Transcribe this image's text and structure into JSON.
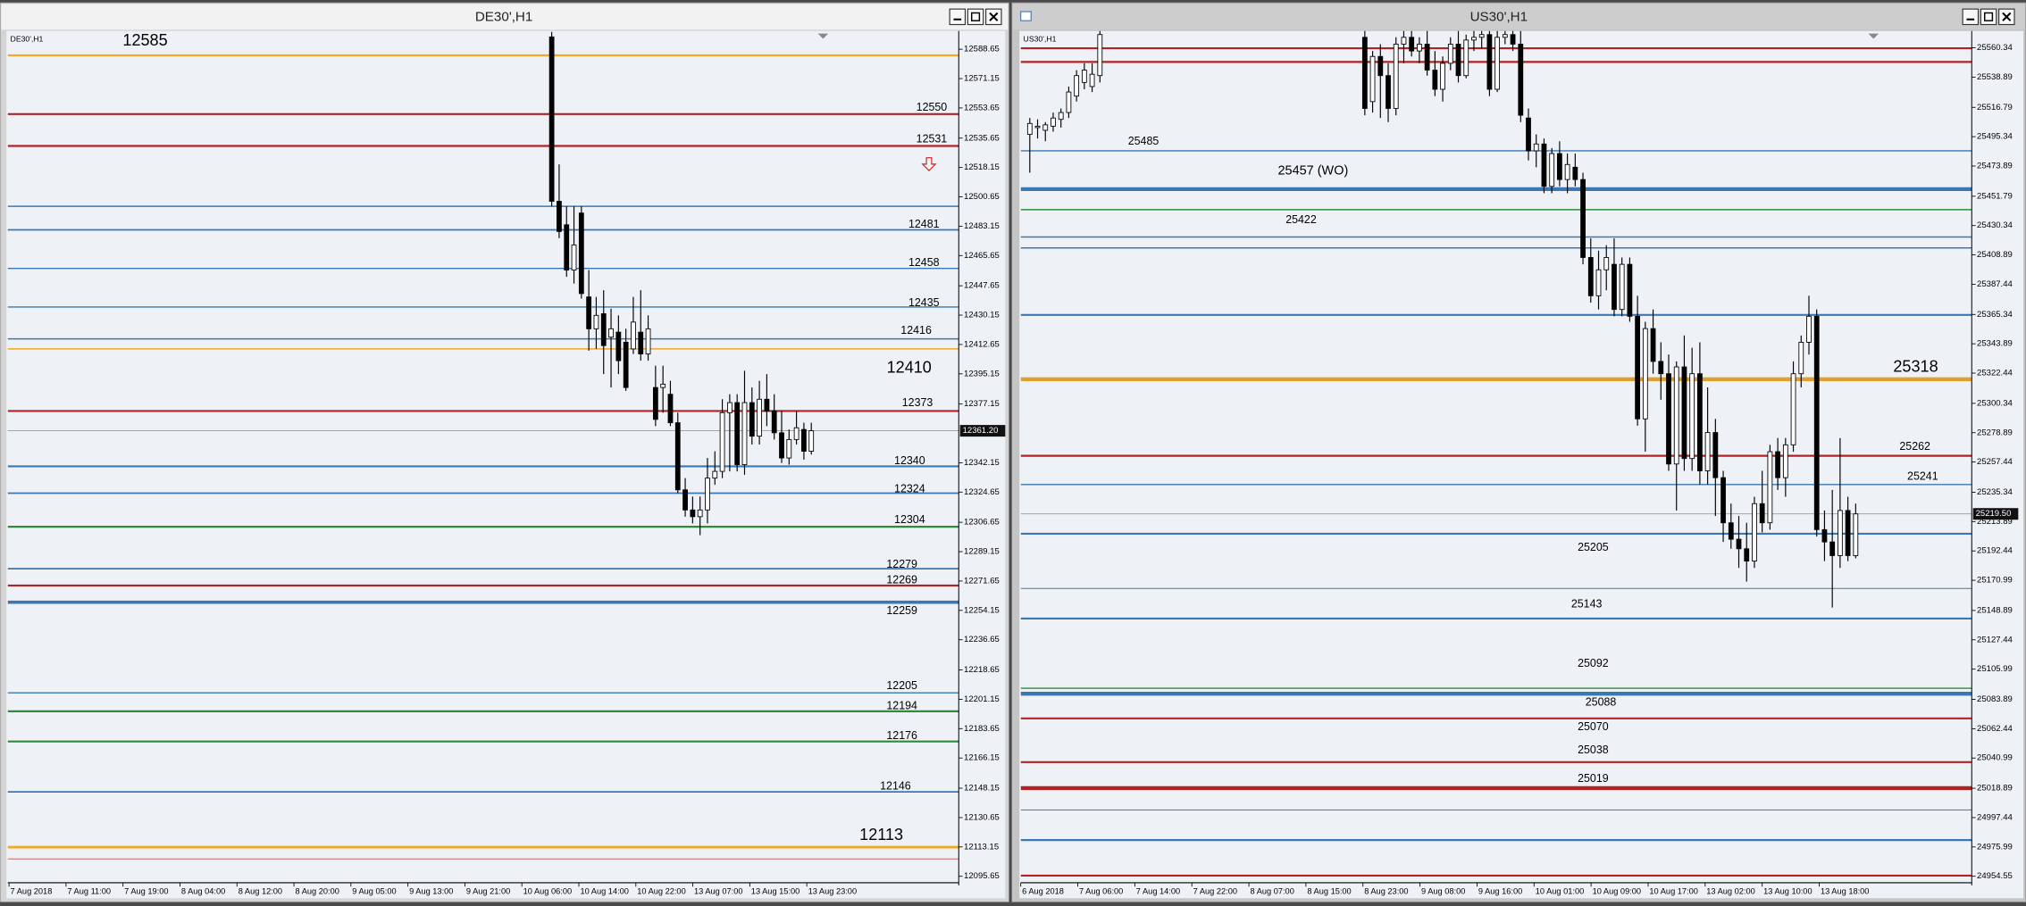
{
  "chart_data": [
    {
      "type": "candlestick",
      "title": "DE30',H1",
      "up_color": "#ffffff",
      "down_color": "#000000",
      "grid": false,
      "ylim": [
        12091.8,
        12599.5
      ],
      "yticks": [
        12588.65,
        12571.15,
        12553.65,
        12535.65,
        12518.15,
        12500.65,
        12483.15,
        12465.65,
        12447.65,
        12430.15,
        12412.65,
        12395.15,
        12377.15,
        12342.15,
        12324.65,
        12306.65,
        12289.15,
        12271.65,
        12254.15,
        12236.65,
        12218.65,
        12201.15,
        12183.65,
        12166.15,
        12148.15,
        12130.65,
        12113.15,
        12095.65
      ],
      "x_labels": [
        "7 Aug 2018",
        "7 Aug 11:00",
        "7 Aug 19:00",
        "8 Aug 04:00",
        "8 Aug 12:00",
        "8 Aug 20:00",
        "9 Aug 05:00",
        "9 Aug 13:00",
        "9 Aug 21:00",
        "10 Aug 06:00",
        "10 Aug 14:00",
        "10 Aug 22:00",
        "13 Aug 07:00",
        "13 Aug 15:00",
        "13 Aug 23:00"
      ],
      "ohlc": [
        [
          12596,
          12599,
          12495,
          12498
        ],
        [
          12498,
          12520,
          12476,
          12480
        ],
        [
          12484,
          12495,
          12453,
          12457
        ],
        [
          12457,
          12495,
          12449,
          12472
        ],
        [
          12491,
          12495,
          12440,
          12443
        ],
        [
          12441,
          12457,
          12409,
          12422
        ],
        [
          12422,
          12441,
          12410,
          12430
        ],
        [
          12431,
          12445,
          12395,
          12412
        ],
        [
          12417,
          12434,
          12387,
          12422
        ],
        [
          12420,
          12430,
          12395,
          12403
        ],
        [
          12414,
          12422,
          12385,
          12387
        ],
        [
          12410,
          12441,
          12407,
          12426
        ],
        [
          12420,
          12445,
          12403,
          12407
        ],
        [
          12407,
          12430,
          12403,
          12422
        ],
        [
          12387,
          12400,
          12364,
          12368
        ],
        [
          12387,
          12400,
          12372,
          12389
        ],
        [
          12383,
          12391,
          12364,
          12366
        ],
        [
          12366,
          12372,
          12324,
          12326
        ],
        [
          12326,
          12333,
          12310,
          12314
        ],
        [
          12314,
          12322,
          12306,
          12310
        ],
        [
          12310,
          12322,
          12299,
          12314
        ],
        [
          12314,
          12345,
          12306,
          12333
        ],
        [
          12333,
          12349,
          12329,
          12337
        ],
        [
          12337,
          12380,
          12333,
          12372
        ],
        [
          12372,
          12383,
          12337,
          12378
        ],
        [
          12378,
          12383,
          12337,
          12341
        ],
        [
          12341,
          12397,
          12335,
          12378
        ],
        [
          12378,
          12387,
          12353,
          12358
        ],
        [
          12358,
          12391,
          12353,
          12380
        ],
        [
          12380,
          12395,
          12364,
          12373
        ],
        [
          12373,
          12383,
          12356,
          12360
        ],
        [
          12360,
          12373,
          12342,
          12345
        ],
        [
          12345,
          12362,
          12341,
          12356
        ],
        [
          12356,
          12373,
          12353,
          12363
        ],
        [
          12362,
          12366,
          12344,
          12349
        ],
        [
          12349,
          12366,
          12347,
          12361.2
        ]
      ],
      "levels": [
        {
          "value": 12585,
          "color": "#f5a623",
          "width": 1.5
        },
        {
          "value": 12550,
          "color": "#b22222",
          "width": 1.5
        },
        {
          "value": 12531,
          "color": "#b22222",
          "width": 1.5
        },
        {
          "value": 12481,
          "color": "#3a78b5",
          "width": 1.2
        },
        {
          "value": 12458,
          "color": "#3a78b5",
          "width": 1
        },
        {
          "value": 12435,
          "color": "#3a78b5",
          "width": 1
        },
        {
          "value": 12416,
          "color": "#3a78b5",
          "width": 1
        },
        {
          "value": 12410,
          "color": "#f5a623",
          "width": 1
        },
        {
          "value": 12373,
          "color": "#b22222",
          "width": 1.5
        },
        {
          "value": 12340,
          "color": "#3a78b5",
          "width": 1.5
        },
        {
          "value": 12324,
          "color": "#3a78b5",
          "width": 1.2
        },
        {
          "value": 12304,
          "color": "#2e8b3a",
          "width": 1.5
        },
        {
          "value": 12279,
          "color": "#3a78b5",
          "width": 1.2
        },
        {
          "value": 12269,
          "color": "#b22222",
          "width": 1.5
        },
        {
          "value": 12259,
          "color": "#3a78b5",
          "width": 2.5
        },
        {
          "value": 12205,
          "color": "#3a78b5",
          "width": 1
        },
        {
          "value": 12194,
          "color": "#2e8b3a",
          "width": 1.5
        },
        {
          "value": 12176,
          "color": "#2e8b3a",
          "width": 1.5
        },
        {
          "value": 12146,
          "color": "#3a78b5",
          "width": 1.2
        },
        {
          "value": 12113,
          "color": "#f5a623",
          "width": 2
        }
      ],
      "lines": [
        {
          "value": 12495,
          "color": "#3a78b5",
          "width": 1
        },
        {
          "value": 12106,
          "color": "#c86464",
          "width": 0.7
        }
      ],
      "last_price": {
        "value": 12361.2,
        "label": "12361.20"
      }
    },
    {
      "type": "candlestick",
      "title": "US30',H1",
      "up_color": "#ffffff",
      "down_color": "#000000",
      "grid": false,
      "ylim": [
        24949.8,
        25572.6
      ],
      "yticks": [
        25560.34,
        25538.89,
        25516.79,
        25495.34,
        25473.89,
        25451.79,
        25430.34,
        25408.89,
        25387.44,
        25365.34,
        25343.89,
        25322.44,
        25300.34,
        25278.89,
        25257.44,
        25235.34,
        25213.89,
        25192.44,
        25170.99,
        25148.89,
        25127.44,
        25105.99,
        25083.89,
        25062.44,
        25040.99,
        25018.89,
        24997.44,
        24975.99,
        24954.55
      ],
      "x_labels": [
        "6 Aug 2018",
        "7 Aug 06:00",
        "7 Aug 14:00",
        "7 Aug 22:00",
        "8 Aug 07:00",
        "8 Aug 15:00",
        "8 Aug 23:00",
        "9 Aug 08:00",
        "9 Aug 16:00",
        "10 Aug 01:00",
        "10 Aug 09:00",
        "10 Aug 17:00",
        "13 Aug 02:00",
        "13 Aug 10:00",
        "13 Aug 18:00"
      ],
      "ohlc": [
        [
          25497,
          25509,
          25469,
          25505
        ],
        [
          25502,
          25508,
          25494,
          25503
        ],
        [
          25500,
          25506,
          25492,
          25504
        ],
        [
          25503,
          25513,
          25499,
          25509
        ],
        [
          25508,
          25516,
          25502,
          25513
        ],
        [
          25513,
          25532,
          25509,
          25528
        ],
        [
          25525,
          25544,
          25521,
          25540
        ],
        [
          25535,
          25549,
          25530,
          25544
        ],
        [
          25532,
          25549,
          25528,
          25541
        ],
        [
          25540,
          25573,
          25535,
          25570
        ],
        null,
        null,
        null,
        null,
        null,
        null,
        null,
        null,
        null,
        null,
        null,
        null,
        null,
        null,
        null,
        null,
        null,
        null,
        null,
        null,
        null,
        null,
        null,
        null,
        null,
        null,
        null,
        null,
        null,
        null,
        null,
        null,
        null,
        [
          25568,
          25573,
          25511,
          25516
        ],
        [
          25521,
          25558,
          25513,
          25554
        ],
        [
          25554,
          25563,
          25509,
          25540
        ],
        [
          25540,
          25549,
          25506,
          25516
        ],
        [
          25516,
          25568,
          25511,
          25563
        ],
        [
          25563,
          25573,
          25549,
          25568
        ],
        [
          25568,
          25573,
          25554,
          25558
        ],
        [
          25558,
          25568,
          25549,
          25563
        ],
        [
          25563,
          25573,
          25540,
          25544
        ],
        [
          25544,
          25558,
          25525,
          25530
        ],
        [
          25530,
          25554,
          25521,
          25549
        ],
        [
          25549,
          25568,
          25544,
          25563
        ],
        [
          25563,
          25573,
          25535,
          25540
        ],
        [
          25540,
          25570,
          25538,
          25566
        ],
        [
          25566,
          25573,
          25558,
          25568
        ],
        [
          25568,
          25573,
          25560,
          25570
        ],
        [
          25570,
          25573,
          25525,
          25530
        ],
        [
          25530,
          25573,
          25528,
          25568
        ],
        [
          25568,
          25573,
          25563,
          25570
        ],
        [
          25570,
          25573,
          25558,
          25563
        ],
        [
          25563,
          25573,
          25506,
          25511
        ],
        [
          25509,
          25516,
          25478,
          25485
        ],
        [
          25485,
          25497,
          25473,
          25490
        ],
        [
          25490,
          25494,
          25454,
          25459
        ],
        [
          25459,
          25487,
          25454,
          25483
        ],
        [
          25483,
          25492,
          25459,
          25464
        ],
        [
          25464,
          25483,
          25454,
          25475
        ],
        [
          25473,
          25483,
          25459,
          25464
        ],
        [
          25464,
          25469,
          25402,
          25407
        ],
        [
          25407,
          25421,
          25374,
          25379
        ],
        [
          25379,
          25412,
          25369,
          25398
        ],
        [
          25398,
          25416,
          25383,
          25407
        ],
        [
          25402,
          25421,
          25364,
          25369
        ],
        [
          25369,
          25407,
          25364,
          25402
        ],
        [
          25402,
          25407,
          25360,
          25364
        ],
        [
          25364,
          25379,
          25284,
          25289
        ],
        [
          25289,
          25360,
          25265,
          25355
        ],
        [
          25355,
          25369,
          25322,
          25331
        ],
        [
          25331,
          25345,
          25303,
          25322
        ],
        [
          25322,
          25336,
          25251,
          25256
        ],
        [
          25256,
          25331,
          25222,
          25327
        ],
        [
          25327,
          25350,
          25251,
          25260
        ],
        [
          25260,
          25341,
          25251,
          25322
        ],
        [
          25322,
          25345,
          25241,
          25251
        ],
        [
          25251,
          25312,
          25241,
          25279
        ],
        [
          25279,
          25289,
          25218,
          25246
        ],
        [
          25246,
          25251,
          25199,
          25213
        ],
        [
          25213,
          25227,
          25194,
          25201
        ],
        [
          25201,
          25218,
          25180,
          25194
        ],
        [
          25194,
          25213,
          25170,
          25185
        ],
        [
          25185,
          25232,
          25180,
          25227
        ],
        [
          25227,
          25251,
          25206,
          25213
        ],
        [
          25213,
          25270,
          25208,
          25265
        ],
        [
          25265,
          25275,
          25237,
          25246
        ],
        [
          25246,
          25275,
          25232,
          25270
        ],
        [
          25270,
          25331,
          25265,
          25322
        ],
        [
          25322,
          25350,
          25312,
          25345
        ],
        [
          25345,
          25379,
          25336,
          25364
        ],
        [
          25364,
          25369,
          25203,
          25208
        ],
        [
          25208,
          25222,
          25185,
          25199
        ],
        [
          25199,
          25237,
          25151,
          25189
        ],
        [
          25189,
          25275,
          25180,
          25222
        ],
        [
          25222,
          25232,
          25185,
          25189
        ],
        [
          25189,
          25227,
          25187,
          25219.5
        ]
      ],
      "levels": [
        {
          "value": 25485,
          "color": "#3a78b5",
          "width": 1
        },
        {
          "value": 25457,
          "label": "25457 (WO)",
          "color": "#3a78b5",
          "width": 3
        },
        {
          "value": 25422,
          "color": "#3a78b5",
          "width": 1
        },
        {
          "value": 25318,
          "color": "#e0a030",
          "width": 3
        },
        {
          "value": 25262,
          "color": "#b22222",
          "width": 1.5
        },
        {
          "value": 25241,
          "color": "#3a78b5",
          "width": 1
        },
        {
          "value": 25205,
          "color": "#3a78b5",
          "width": 1.5
        },
        {
          "value": 25143,
          "color": "#3a78b5",
          "width": 1.5
        },
        {
          "value": 25092,
          "color": "#2e8b3a",
          "width": 1
        },
        {
          "value": 25088,
          "color": "#3a78b5",
          "width": 3
        },
        {
          "value": 25070,
          "color": "#b22222",
          "width": 1.5
        },
        {
          "value": 25038,
          "color": "#b22222",
          "width": 1.5
        },
        {
          "value": 25019,
          "color": "#b22222",
          "width": 3
        }
      ],
      "lines": [
        {
          "value": 25560,
          "color": "#b22222",
          "width": 1.5
        },
        {
          "value": 25550,
          "color": "#b22222",
          "width": 1.5
        },
        {
          "value": 25442,
          "color": "#2e8b3a",
          "width": 1
        },
        {
          "value": 25414,
          "color": "#3a78b5",
          "width": 1
        },
        {
          "value": 25365,
          "color": "#3a78b5",
          "width": 1.5
        },
        {
          "value": 25165,
          "color": "#3a78b5",
          "width": 0.7
        },
        {
          "value": 25003,
          "color": "#3a78b5",
          "width": 0.7
        },
        {
          "value": 24981,
          "color": "#3a78b5",
          "width": 1.5
        },
        {
          "value": 24955,
          "color": "#b22222",
          "width": 1.5
        }
      ],
      "last_price": {
        "value": 25219.5,
        "label": "25219.50"
      }
    }
  ]
}
